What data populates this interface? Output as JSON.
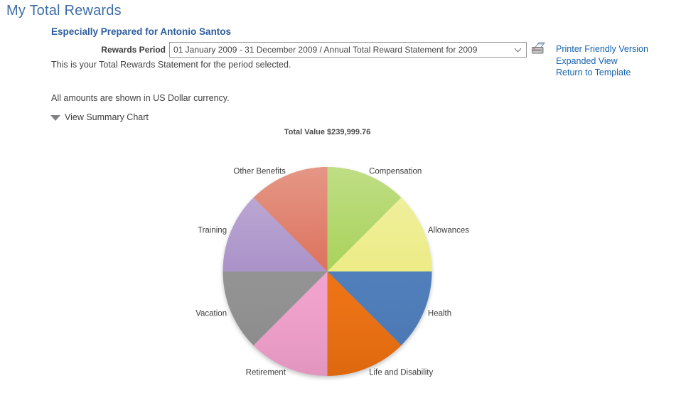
{
  "page": {
    "title": "My Total Rewards"
  },
  "header": {
    "prepared_for": "Especially Prepared for Antonio Santos",
    "rewards_period_label": "Rewards Period",
    "rewards_period_value": "01 January 2009 - 31 December 2009 / Annual Total Reward Statement for 2009",
    "links": [
      "Printer Friendly Version",
      "Expanded View",
      "Return to Template"
    ]
  },
  "body": {
    "statement_text": "This is your Total Rewards Statement for the period selected.",
    "currency_text": "All amounts are shown in US Dollar currency.",
    "summary_toggle_label": "View Summary Chart"
  },
  "chart_data": {
    "type": "pie",
    "title": "Total Value $239,999.76",
    "total_value": "$239,999.76",
    "categories": [
      "Compensation",
      "Allowances",
      "Health",
      "Life and Disability",
      "Retirement",
      "Vacation",
      "Training",
      "Other Benefits"
    ],
    "values": [
      12.5,
      12.5,
      12.5,
      12.5,
      12.5,
      12.5,
      12.5,
      12.5
    ],
    "unit": "percent",
    "colors": [
      "#a6d155",
      "#eceb82",
      "#4b7bb9",
      "#ee6f0e",
      "#f2a0cc",
      "#909090",
      "#a88fc7",
      "#db6e58"
    ],
    "start_angle_deg": 0,
    "direction": "clockwise",
    "legend": "none",
    "labels": "outside"
  }
}
